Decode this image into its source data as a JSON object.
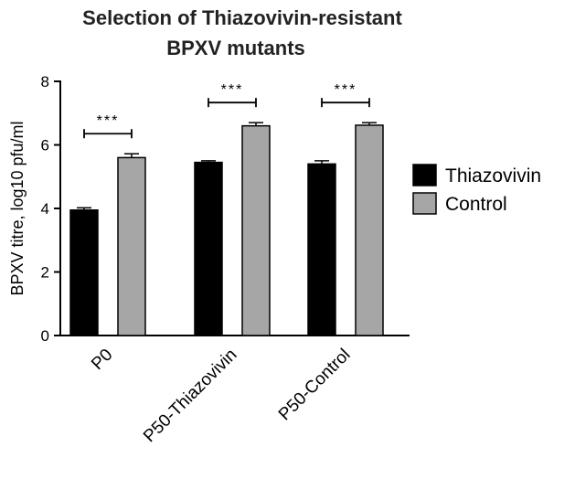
{
  "chart_data": {
    "type": "bar",
    "title_lines": [
      "Selection of Thiazovivin-resistant",
      "BPXV mutants"
    ],
    "ylabel": "BPXV titre, log10 pfu/ml",
    "xlabel": "",
    "ylim": [
      0,
      8
    ],
    "yticks": [
      "0",
      "2",
      "4",
      "6",
      "8"
    ],
    "categories": [
      "P0",
      "P50-Thiazovivin",
      "P50-Control"
    ],
    "series": [
      {
        "name": "Thiazovivin",
        "values": [
          3.95,
          5.45,
          5.4
        ],
        "errors": [
          0.07,
          0.05,
          0.1
        ],
        "color": "#000000"
      },
      {
        "name": "Control",
        "values": [
          5.6,
          6.6,
          6.62
        ],
        "errors": [
          0.12,
          0.1,
          0.08
        ],
        "color": "#a6a6a6"
      }
    ],
    "significance": [
      "***",
      "***",
      "***"
    ],
    "legend_position": "right",
    "grid": false
  }
}
